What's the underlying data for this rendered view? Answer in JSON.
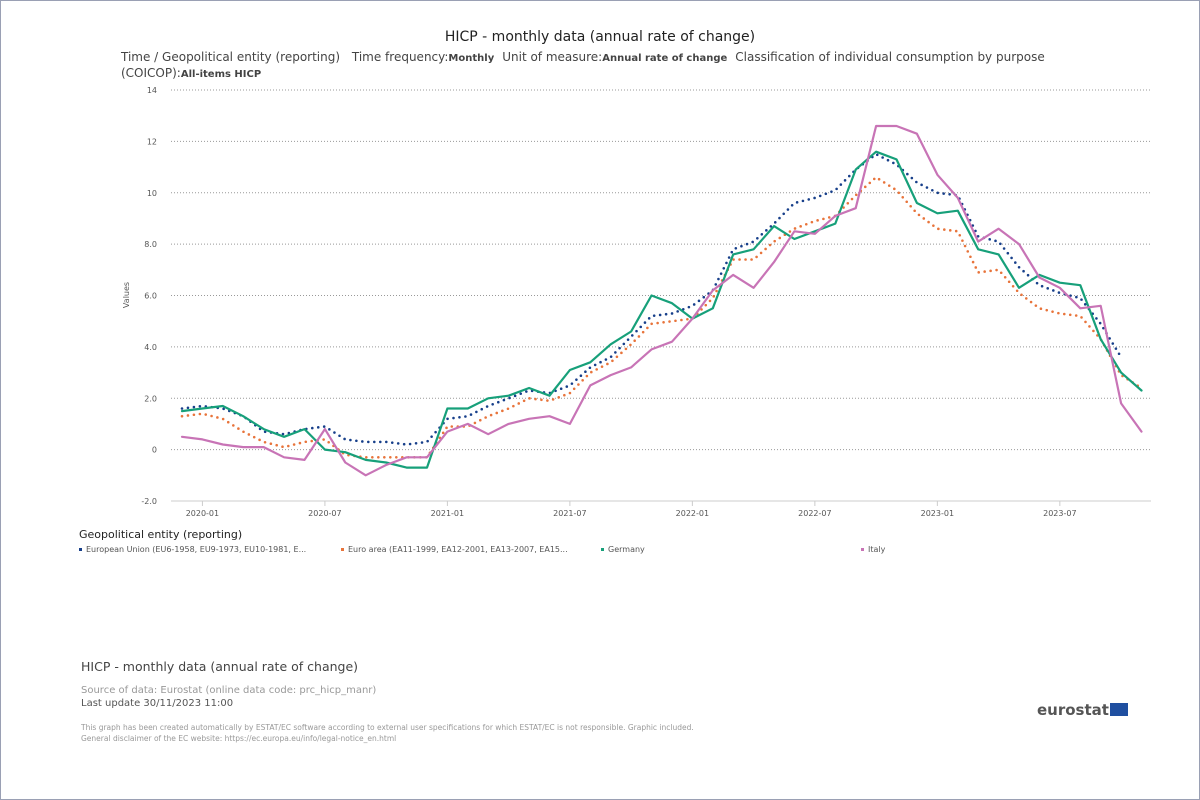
{
  "chart_data": {
    "type": "line",
    "title": "HICP - monthly data (annual rate of change)",
    "subtitle_lead": "Time / Geopolitical entity (reporting)",
    "filters": [
      {
        "label": "Time frequency:",
        "value": "Monthly"
      },
      {
        "label": "Unit of measure:",
        "value": "Annual rate of change"
      },
      {
        "label": "Classification of individual consumption by purpose (COICOP):",
        "value": "All-items HICP"
      }
    ],
    "ylabel": "Values",
    "x": [
      "2019-12",
      "2020-01",
      "2020-02",
      "2020-03",
      "2020-04",
      "2020-05",
      "2020-06",
      "2020-07",
      "2020-08",
      "2020-09",
      "2020-10",
      "2020-11",
      "2020-12",
      "2021-01",
      "2021-02",
      "2021-03",
      "2021-04",
      "2021-05",
      "2021-06",
      "2021-07",
      "2021-08",
      "2021-09",
      "2021-10",
      "2021-11",
      "2021-12",
      "2022-01",
      "2022-02",
      "2022-03",
      "2022-04",
      "2022-05",
      "2022-06",
      "2022-07",
      "2022-08",
      "2022-09",
      "2022-10",
      "2022-11",
      "2022-12",
      "2023-01",
      "2023-02",
      "2023-03",
      "2023-04",
      "2023-05",
      "2023-06",
      "2023-07",
      "2023-08",
      "2023-09",
      "2023-10",
      "2023-11"
    ],
    "xticks": [
      "2020-01",
      "2020-07",
      "2021-01",
      "2021-07",
      "2022-01",
      "2022-07",
      "2023-01",
      "2023-07"
    ],
    "ylim": [
      -2,
      14
    ],
    "yticks": [
      {
        "value": -2,
        "label": "-2.0"
      },
      0,
      {
        "value": 2,
        "label": "2.0"
      },
      {
        "value": 4,
        "label": "4.0"
      },
      {
        "value": 6,
        "label": "6.0"
      },
      {
        "value": 8,
        "label": "8.0"
      },
      10,
      12,
      14
    ],
    "grid": true,
    "legend_title": "Geopolitical entity (reporting)",
    "legend_position": "bottom",
    "series": [
      {
        "name": "European Union (EU6-1958, EU9-1973, EU10-1981, E...",
        "color": "#173f8a",
        "dash": "dotted",
        "values": [
          1.6,
          1.7,
          1.6,
          1.3,
          0.7,
          0.6,
          0.8,
          0.9,
          0.4,
          0.3,
          0.3,
          0.2,
          0.3,
          1.2,
          1.3,
          1.7,
          2.0,
          2.3,
          2.2,
          2.5,
          3.2,
          3.6,
          4.4,
          5.2,
          5.3,
          5.6,
          6.2,
          7.8,
          8.1,
          8.8,
          9.6,
          9.8,
          10.1,
          10.9,
          11.5,
          11.1,
          10.4,
          10.0,
          9.9,
          8.3,
          8.1,
          7.1,
          6.4,
          6.1,
          5.9,
          4.9,
          3.6,
          null
        ]
      },
      {
        "name": "Euro area (EA11-1999, EA12-2001, EA13-2007, EA15...",
        "color": "#e8743b",
        "dash": "dotted",
        "values": [
          1.3,
          1.4,
          1.2,
          0.7,
          0.3,
          0.1,
          0.3,
          0.4,
          -0.2,
          -0.3,
          -0.3,
          -0.3,
          -0.3,
          0.9,
          0.9,
          1.3,
          1.6,
          2.0,
          1.9,
          2.2,
          3.0,
          3.4,
          4.1,
          4.9,
          5.0,
          5.1,
          5.9,
          7.4,
          7.4,
          8.1,
          8.6,
          8.9,
          9.1,
          9.9,
          10.6,
          10.1,
          9.2,
          8.6,
          8.5,
          6.9,
          7.0,
          6.1,
          5.5,
          5.3,
          5.2,
          4.3,
          2.9,
          2.4
        ]
      },
      {
        "name": "Germany",
        "color": "#17a07a",
        "dash": "solid",
        "values": [
          1.5,
          1.6,
          1.7,
          1.3,
          0.8,
          0.5,
          0.8,
          0.0,
          -0.1,
          -0.4,
          -0.5,
          -0.7,
          -0.7,
          1.6,
          1.6,
          2.0,
          2.1,
          2.4,
          2.1,
          3.1,
          3.4,
          4.1,
          4.6,
          6.0,
          5.7,
          5.1,
          5.5,
          7.6,
          7.8,
          8.7,
          8.2,
          8.5,
          8.8,
          10.9,
          11.6,
          11.3,
          9.6,
          9.2,
          9.3,
          7.8,
          7.6,
          6.3,
          6.8,
          6.5,
          6.4,
          4.3,
          3.0,
          2.3
        ]
      },
      {
        "name": "Italy",
        "color": "#c874b6",
        "dash": "solid",
        "values": [
          0.5,
          0.4,
          0.2,
          0.1,
          0.1,
          -0.3,
          -0.4,
          0.8,
          -0.5,
          -1.0,
          -0.6,
          -0.3,
          -0.3,
          0.7,
          1.0,
          0.6,
          1.0,
          1.2,
          1.3,
          1.0,
          2.5,
          2.9,
          3.2,
          3.9,
          4.2,
          5.1,
          6.2,
          6.8,
          6.3,
          7.3,
          8.5,
          8.4,
          9.1,
          9.4,
          12.6,
          12.6,
          12.3,
          10.7,
          9.8,
          8.1,
          8.6,
          8.0,
          6.7,
          6.3,
          5.5,
          5.6,
          1.8,
          0.7
        ]
      }
    ]
  },
  "footer": {
    "title": "HICP - monthly data (annual rate of change)",
    "source": "Source of data: Eurostat (online data code: prc_hicp_manr)",
    "update": "Last update 30/11/2023 11:00",
    "disclaimer": [
      "This graph has been created automatically by ESTAT/EC software according to external user specifications for which ESTAT/EC is not responsible. Graphic included.",
      "General disclaimer of the EC website: https://ec.europa.eu/info/legal-notice_en.html"
    ],
    "logo": "eurostat"
  }
}
